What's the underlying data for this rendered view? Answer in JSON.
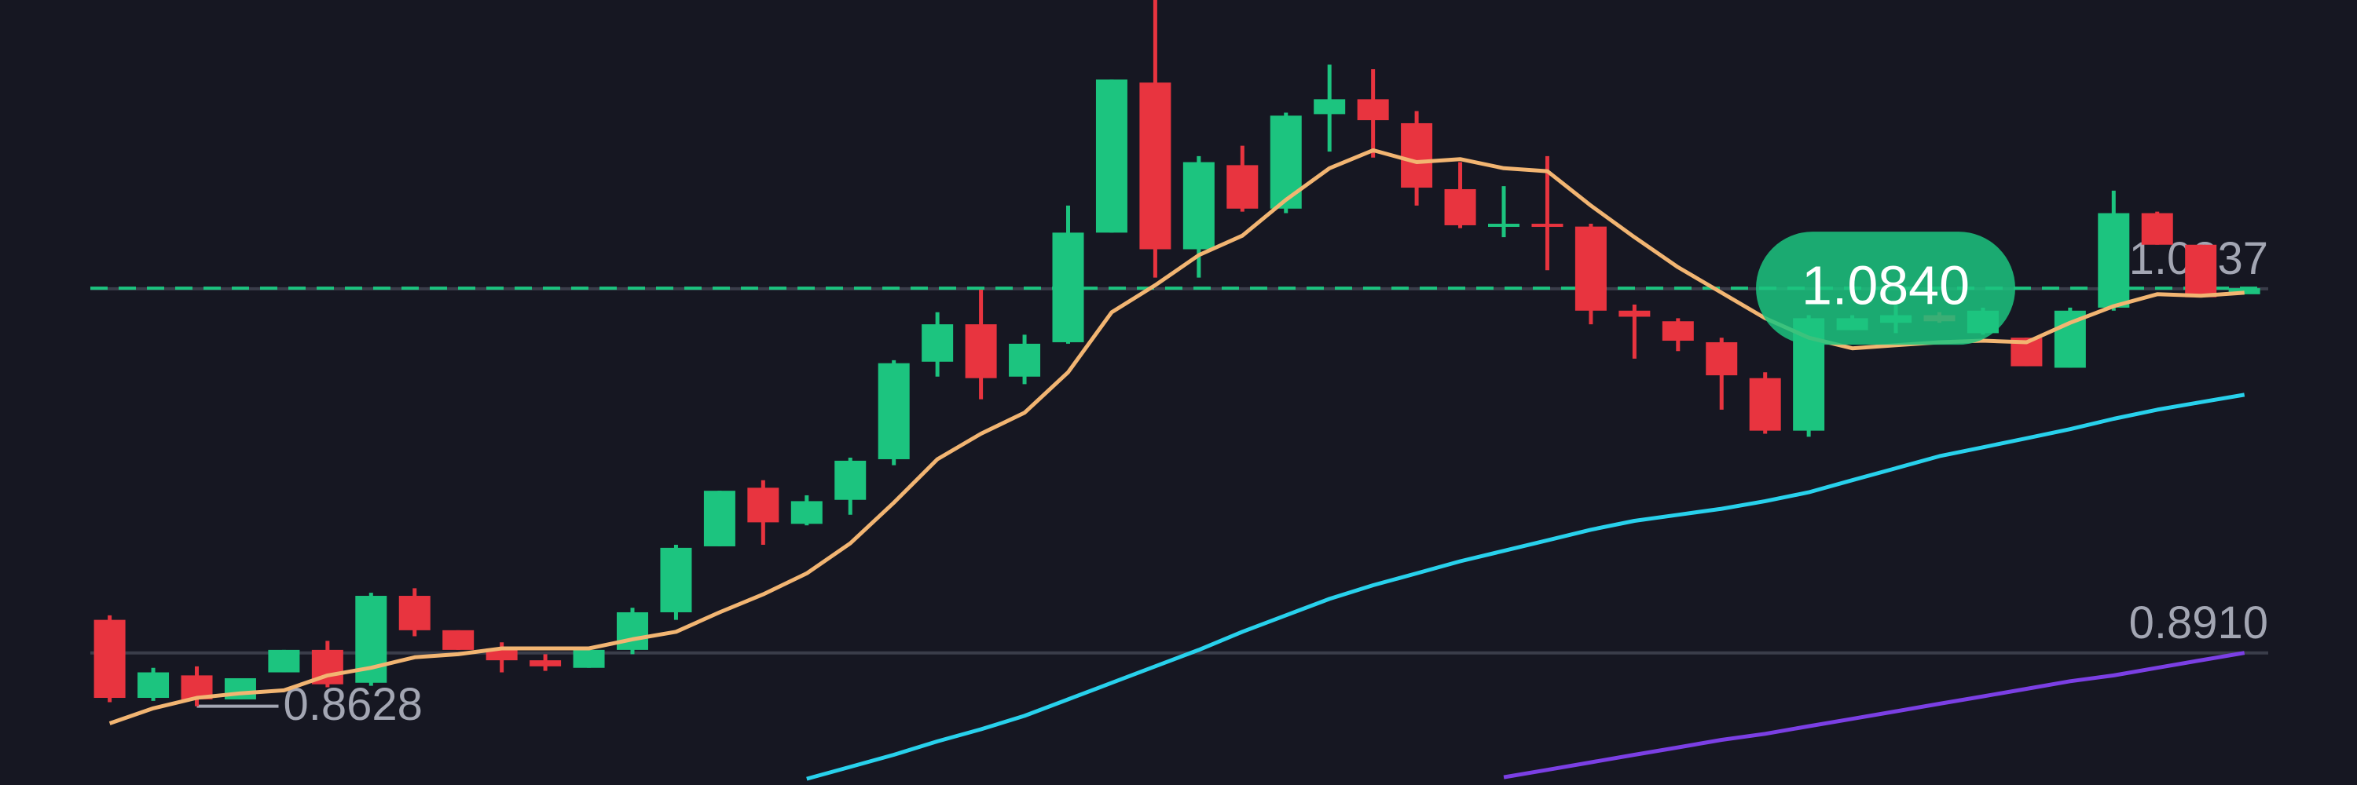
{
  "chart_data": {
    "type": "candlestick",
    "ylim": [
      0.8211,
      1.2365
    ],
    "up_color": "#1cc47f",
    "down_color": "#e8343f",
    "open": [
      0.9085,
      0.8672,
      0.8791,
      0.8664,
      0.8807,
      0.8926,
      0.8752,
      0.9212,
      0.903,
      0.8934,
      0.8871,
      0.8831,
      0.8926,
      0.9125,
      0.9474,
      0.9784,
      0.9593,
      0.972,
      0.9935,
      1.0451,
      1.0649,
      1.0372,
      1.0554,
      1.1134,
      1.1928,
      1.1046,
      1.1491,
      1.1261,
      1.1761,
      1.184,
      1.1713,
      1.1364,
      1.1166,
      1.1181,
      1.1166,
      1.0721,
      1.0665,
      1.0554,
      1.0364,
      1.0086,
      1.0618,
      1.0657,
      1.0697,
      1.0602,
      1.0578,
      1.0419,
      1.0737,
      1.1237,
      1.107,
      1.0808
    ],
    "high": [
      0.9109,
      0.8831,
      0.8839,
      0.8776,
      0.8926,
      0.8974,
      0.9228,
      0.9252,
      0.903,
      0.8966,
      0.8903,
      0.8926,
      0.9149,
      0.9482,
      0.9768,
      0.9824,
      0.9744,
      0.9943,
      1.0459,
      1.0713,
      1.0832,
      1.0594,
      1.1277,
      1.1944,
      1.2365,
      1.1539,
      1.1594,
      1.1769,
      1.2023,
      1.1999,
      1.1777,
      1.1507,
      1.138,
      1.1539,
      1.1181,
      1.0753,
      1.0681,
      1.0578,
      1.0395,
      1.0697,
      1.0697,
      1.0753,
      1.0713,
      1.0737,
      1.0578,
      1.0737,
      1.1356,
      1.1245,
      1.107,
      1.084
    ],
    "low": [
      0.8649,
      0.8656,
      0.8628,
      0.8664,
      0.8807,
      0.8728,
      0.8736,
      0.8998,
      0.8926,
      0.8807,
      0.8815,
      0.8831,
      0.8903,
      0.9085,
      0.9474,
      0.9482,
      0.9585,
      0.9641,
      0.9903,
      1.0372,
      1.0252,
      1.0332,
      1.0546,
      1.1134,
      1.0896,
      1.0896,
      1.1245,
      1.1237,
      1.1563,
      1.1531,
      1.1277,
      1.1158,
      1.111,
      1.0935,
      1.0649,
      1.0467,
      1.0507,
      1.0197,
      1.007,
      1.0054,
      1.0618,
      1.0602,
      1.0657,
      1.0594,
      1.0427,
      1.0419,
      1.0721,
      1.107,
      1.0792,
      1.0808
    ],
    "close": [
      0.8672,
      0.8807,
      0.8664,
      0.8776,
      0.8926,
      0.8744,
      0.9212,
      0.903,
      0.8926,
      0.8871,
      0.8839,
      0.8926,
      0.9125,
      0.9466,
      0.9768,
      0.9601,
      0.9713,
      0.9927,
      1.0443,
      1.0649,
      1.0364,
      1.0546,
      1.1134,
      1.1944,
      1.1046,
      1.1507,
      1.1261,
      1.1753,
      1.184,
      1.1729,
      1.1372,
      1.1173,
      1.1181,
      1.1166,
      1.0721,
      1.0689,
      1.0562,
      1.0379,
      1.0086,
      1.0681,
      1.0681,
      1.0697,
      1.0665,
      1.0721,
      1.0427,
      1.0721,
      1.1237,
      1.107,
      1.0792,
      1.084
    ],
    "lines": [
      {
        "color": "#f2b572",
        "values": [
          0.8537,
          0.8617,
          0.8672,
          0.8696,
          0.8712,
          0.8791,
          0.8831,
          0.8887,
          0.8903,
          0.8934,
          0.8934,
          0.8934,
          0.8982,
          0.9022,
          0.9125,
          0.922,
          0.9331,
          0.949,
          0.9705,
          0.9935,
          1.007,
          1.0181,
          1.0395,
          1.0713,
          1.0856,
          1.1015,
          1.1118,
          1.1308,
          1.1475,
          1.157,
          1.1507,
          1.1523,
          1.1475,
          1.1459,
          1.1277,
          1.111,
          1.0951,
          1.0816,
          1.0681,
          1.0578,
          1.0522,
          1.0538,
          1.0554,
          1.0562,
          1.0554,
          1.0657,
          1.0745,
          1.0808,
          1.08,
          1.0816
        ]
      },
      {
        "color": "#28d1ec",
        "values": [
          null,
          null,
          null,
          null,
          null,
          null,
          null,
          null,
          null,
          null,
          null,
          null,
          null,
          null,
          null,
          null,
          0.8244,
          0.8307,
          0.8371,
          0.8442,
          0.8506,
          0.8577,
          0.8664,
          0.8752,
          0.8839,
          0.8926,
          0.9022,
          0.9109,
          0.9196,
          0.9268,
          0.9331,
          0.9395,
          0.945,
          0.9506,
          0.9562,
          0.9609,
          0.9641,
          0.9673,
          0.9713,
          0.976,
          0.9824,
          0.9887,
          0.9951,
          0.9998,
          1.0046,
          1.0094,
          1.0149,
          1.0197,
          1.0237,
          1.0276
        ]
      },
      {
        "color": "#7b3fe4",
        "values": [
          null,
          null,
          null,
          null,
          null,
          null,
          null,
          null,
          null,
          null,
          null,
          null,
          null,
          null,
          null,
          null,
          null,
          null,
          null,
          null,
          null,
          null,
          null,
          null,
          null,
          null,
          null,
          null,
          null,
          null,
          null,
          null,
          0.8252,
          0.8291,
          0.8331,
          0.8371,
          0.841,
          0.845,
          0.8482,
          0.8522,
          0.8561,
          0.8601,
          0.8641,
          0.868,
          0.872,
          0.876,
          0.8791,
          0.8831,
          0.8871,
          0.891
        ]
      }
    ],
    "annotations": [
      {
        "value": 1.0837,
        "label": "1.0837",
        "kind": "line"
      },
      {
        "value": 0.891,
        "label": "0.8910",
        "kind": "line"
      },
      {
        "value": 0.8628,
        "label": "0.8628",
        "kind": "marker"
      },
      {
        "value": 1.084,
        "label": "1.0840",
        "kind": "current",
        "color": "#1cc47f"
      }
    ]
  }
}
